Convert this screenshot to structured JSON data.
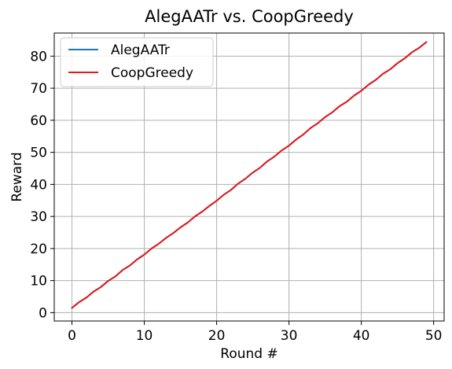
{
  "chart_data": {
    "type": "line",
    "title": "AlegAATr vs. CoopGreedy",
    "xlabel": "Round #",
    "ylabel": "Reward",
    "xlim": [
      -2.45,
      51.45
    ],
    "ylim": [
      -2.6,
      87.2
    ],
    "xticks": [
      0,
      10,
      20,
      30,
      40,
      50
    ],
    "yticks": [
      0,
      10,
      20,
      30,
      40,
      50,
      60,
      70,
      80
    ],
    "grid": true,
    "legend_position": "top-left",
    "x": [
      0,
      1,
      2,
      3,
      4,
      5,
      6,
      7,
      8,
      9,
      10,
      11,
      12,
      13,
      14,
      15,
      16,
      17,
      18,
      19,
      20,
      21,
      22,
      23,
      24,
      25,
      26,
      27,
      28,
      29,
      30,
      31,
      32,
      33,
      34,
      35,
      36,
      37,
      38,
      39,
      40,
      41,
      42,
      43,
      44,
      45,
      46,
      47,
      48,
      49
    ],
    "series": [
      {
        "name": "AlegAATr",
        "color": "#1f77b4",
        "values": [
          1.5,
          3.3,
          4.7,
          6.6,
          8.0,
          9.9,
          11.3,
          13.3,
          14.7,
          16.6,
          18.1,
          20.0,
          21.5,
          23.3,
          24.8,
          26.6,
          28.1,
          30.0,
          31.5,
          33.3,
          34.9,
          36.8,
          38.3,
          40.3,
          41.8,
          43.7,
          45.2,
          47.2,
          48.7,
          50.6,
          52.1,
          54.0,
          55.6,
          57.6,
          59.1,
          61.0,
          62.5,
          64.4,
          65.8,
          67.7,
          69.2,
          71.1,
          72.6,
          74.5,
          75.9,
          77.8,
          79.3,
          81.2,
          82.6,
          84.4
        ]
      },
      {
        "name": "CoopGreedy",
        "color": "#e31a1c",
        "values": [
          1.5,
          3.3,
          4.7,
          6.6,
          8.0,
          9.9,
          11.3,
          13.3,
          14.7,
          16.6,
          18.1,
          20.0,
          21.5,
          23.3,
          24.8,
          26.6,
          28.1,
          30.0,
          31.5,
          33.3,
          34.9,
          36.8,
          38.3,
          40.3,
          41.8,
          43.7,
          45.2,
          47.2,
          48.7,
          50.6,
          52.1,
          54.0,
          55.6,
          57.6,
          59.1,
          61.0,
          62.5,
          64.4,
          65.8,
          67.7,
          69.2,
          71.1,
          72.6,
          74.5,
          75.9,
          77.8,
          79.3,
          81.2,
          82.6,
          84.4
        ]
      }
    ]
  }
}
